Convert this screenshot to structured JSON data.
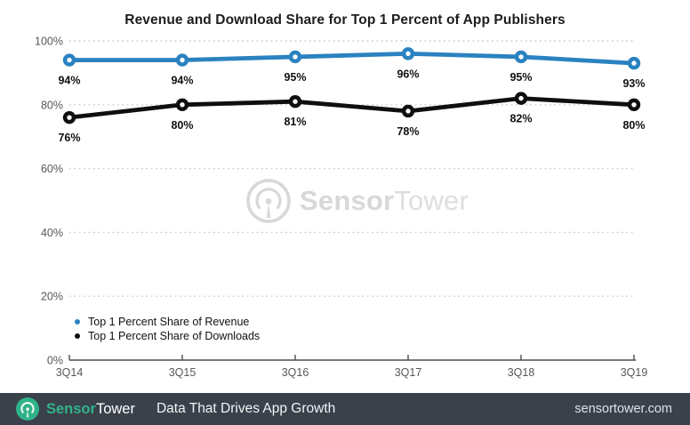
{
  "title": "Revenue and Download Share for Top 1 Percent of App Publishers",
  "colors": {
    "revenue": "#2a82c0",
    "downloads": "#0f0f0f",
    "grid": "#c9c9c9",
    "axis_label": "#555759",
    "axis_line": "#4d4d4d",
    "data_label": "#111111",
    "watermark": "#d8d8d8",
    "footer_bg": "#3a414b",
    "brand_teal": "#31b389"
  },
  "chart_data": {
    "type": "line",
    "x": [
      "3Q14",
      "3Q15",
      "3Q16",
      "3Q17",
      "3Q18",
      "3Q19"
    ],
    "series": [
      {
        "key": "revenue",
        "name": "Top 1 Percent Share of Revenue",
        "values": [
          94,
          94,
          95,
          96,
          95,
          93
        ]
      },
      {
        "key": "downloads",
        "name": "Top 1 Percent Share of Downloads",
        "values": [
          76,
          80,
          81,
          78,
          82,
          80
        ]
      }
    ],
    "title": "Revenue and Download Share for Top 1 Percent of App Publishers",
    "xlabel": "",
    "ylabel": "",
    "ylim": [
      0,
      100
    ],
    "yticks": [
      0,
      20,
      40,
      60,
      80,
      100
    ],
    "ytick_suffix": "%",
    "grid": "horizontal-dotted",
    "legend_position": "inside-bottom-left",
    "data_labels": "below-points"
  },
  "watermark": {
    "text_bold": "Sensor",
    "text_light": "Tower"
  },
  "footer": {
    "brand_bold": "Sensor",
    "brand_light": "Tower",
    "tagline": "Data That Drives App Growth",
    "website": "sensortower.com"
  }
}
